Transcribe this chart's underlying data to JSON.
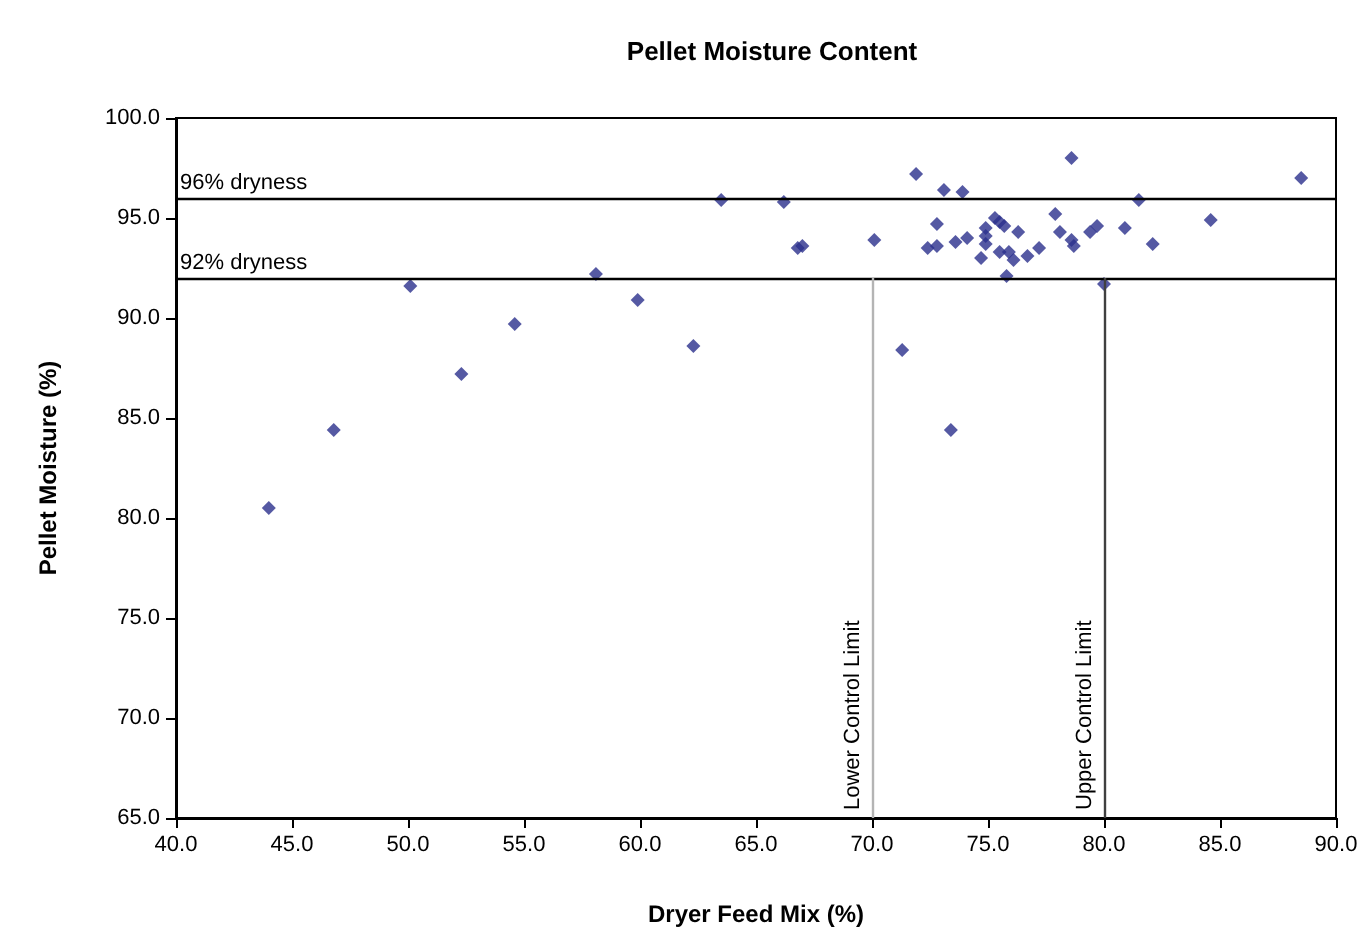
{
  "chart_data": {
    "type": "scatter",
    "title": "Pellet Moisture Content",
    "xlabel": "Dryer Feed Mix (%)",
    "ylabel": "Pellet Moisture (%)",
    "x": [
      44.0,
      46.8,
      50.1,
      52.3,
      54.6,
      58.1,
      59.9,
      62.3,
      63.5,
      66.2,
      66.8,
      67.0,
      70.1,
      71.3,
      71.9,
      72.4,
      72.8,
      72.8,
      73.1,
      73.4,
      73.6,
      73.9,
      74.1,
      74.7,
      74.9,
      74.9,
      74.9,
      75.3,
      75.5,
      75.5,
      75.7,
      75.8,
      75.9,
      76.1,
      76.3,
      76.7,
      77.2,
      77.9,
      78.1,
      78.6,
      78.6,
      78.7,
      79.4,
      79.7,
      80.0,
      80.9,
      81.5,
      82.1,
      84.6,
      88.5
    ],
    "series": [
      {
        "color": "#2b2f8c",
        "values": [
          80.5,
          84.4,
          91.6,
          87.2,
          89.7,
          92.2,
          90.9,
          88.6,
          95.9,
          95.8,
          93.5,
          93.6,
          93.9,
          88.4,
          97.2,
          93.5,
          94.7,
          93.6,
          96.4,
          84.4,
          93.8,
          96.3,
          94.0,
          93.0,
          94.5,
          94.1,
          93.7,
          95.0,
          94.8,
          93.3,
          94.6,
          92.1,
          93.3,
          92.9,
          94.3,
          93.1,
          93.5,
          95.2,
          94.3,
          98.0,
          93.9,
          93.6,
          94.3,
          94.6,
          91.7,
          94.5,
          95.9,
          93.7,
          94.9,
          97.0
        ]
      }
    ],
    "xlim": [
      40,
      90
    ],
    "ylim": [
      65,
      100
    ],
    "xticks": [
      {
        "value": 40,
        "label": "40.0"
      },
      {
        "value": 45,
        "label": "45.0"
      },
      {
        "value": 50,
        "label": "50.0"
      },
      {
        "value": 55,
        "label": "55.0"
      },
      {
        "value": 60,
        "label": "60.0"
      },
      {
        "value": 65,
        "label": "65.0"
      },
      {
        "value": 70,
        "label": "70.0"
      },
      {
        "value": 75,
        "label": "75.0"
      },
      {
        "value": 80,
        "label": "80.0"
      },
      {
        "value": 85,
        "label": "85.0"
      },
      {
        "value": 90,
        "label": "90.0"
      }
    ],
    "yticks": [
      {
        "value": 65,
        "label": "65.0"
      },
      {
        "value": 70,
        "label": "70.0"
      },
      {
        "value": 75,
        "label": "75.0"
      },
      {
        "value": 80,
        "label": "80.0"
      },
      {
        "value": 85,
        "label": "85.0"
      },
      {
        "value": 90,
        "label": "90.0"
      },
      {
        "value": 95,
        "label": "95.0"
      },
      {
        "value": 100,
        "label": "100.0"
      }
    ],
    "ref_lines": [
      {
        "axis": "y",
        "value": 96,
        "label": "96% dryness",
        "color": "#000000"
      },
      {
        "axis": "y",
        "value": 92,
        "label": "92% dryness",
        "color": "#000000"
      },
      {
        "axis": "x",
        "value": 70,
        "label": "Lower Control Limit",
        "color": "#b4b4b4"
      },
      {
        "axis": "x",
        "value": 80,
        "label": "Upper Control Limit",
        "color": "#404040"
      }
    ],
    "grid": false,
    "marker": "diamond"
  }
}
